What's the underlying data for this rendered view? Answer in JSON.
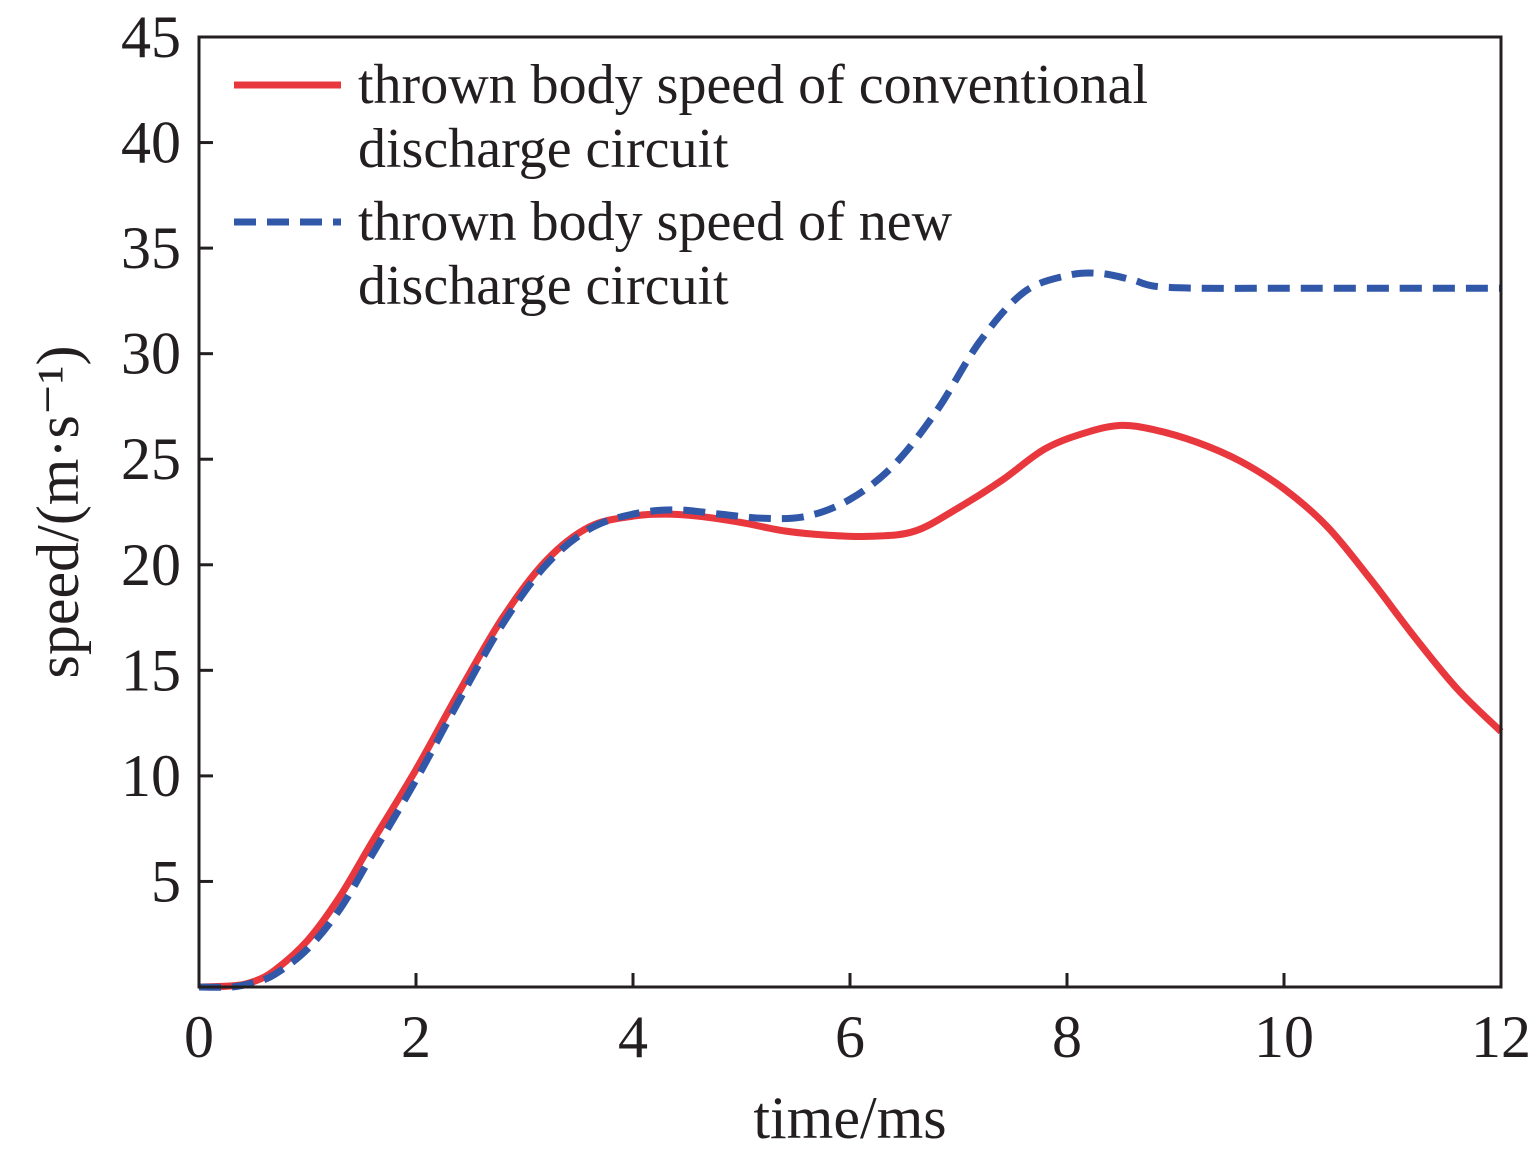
{
  "chart_data": {
    "type": "line",
    "xlabel": "time/ms",
    "ylabel": "speed/(m·s⁻¹)",
    "xlim": [
      0,
      12
    ],
    "ylim": [
      0,
      45
    ],
    "xticks": [
      0,
      2,
      4,
      6,
      8,
      10,
      12
    ],
    "yticks": [
      5,
      10,
      15,
      20,
      25,
      30,
      35,
      40,
      45
    ],
    "xtick_labels": [
      "0",
      "2",
      "4",
      "6",
      "8",
      "10",
      "12"
    ],
    "ytick_labels": [
      "5",
      "10",
      "15",
      "20",
      "25",
      "30",
      "35",
      "40",
      "45"
    ],
    "grid": false,
    "legend_position": "top-left",
    "series": [
      {
        "name": "thrown body speed of conventional discharge circuit",
        "legend_lines": [
          "thrown body speed of conventional",
          "discharge circuit"
        ],
        "color": "#e8383d",
        "style": "solid",
        "x": [
          0,
          0.3,
          0.5,
          0.7,
          1.0,
          1.3,
          1.6,
          2.0,
          2.4,
          2.8,
          3.2,
          3.6,
          4.0,
          4.3,
          4.6,
          5.0,
          5.4,
          5.8,
          6.2,
          6.6,
          7.0,
          7.4,
          7.8,
          8.2,
          8.5,
          8.8,
          9.2,
          9.6,
          10.0,
          10.4,
          10.8,
          11.2,
          11.6,
          12.0
        ],
        "y": [
          0,
          0.05,
          0.25,
          0.8,
          2.2,
          4.3,
          6.9,
          10.3,
          14.0,
          17.5,
          20.2,
          21.8,
          22.3,
          22.4,
          22.3,
          22.0,
          21.6,
          21.4,
          21.35,
          21.6,
          22.7,
          24.0,
          25.5,
          26.3,
          26.6,
          26.4,
          25.8,
          24.9,
          23.6,
          21.8,
          19.3,
          16.6,
          14.1,
          12.1
        ]
      },
      {
        "name": "thrown body speed of new discharge circuit",
        "legend_lines": [
          "thrown body speed of new",
          "discharge circuit"
        ],
        "color": "#3057a8",
        "style": "dashed",
        "x": [
          0,
          0.3,
          0.5,
          0.7,
          1.0,
          1.3,
          1.6,
          2.0,
          2.4,
          2.8,
          3.2,
          3.6,
          4.0,
          4.4,
          4.8,
          5.2,
          5.6,
          6.0,
          6.4,
          6.8,
          7.2,
          7.6,
          8.0,
          8.3,
          8.6,
          8.8,
          9.2,
          10.0,
          11.0,
          12.0
        ],
        "y": [
          0,
          0.0,
          0.2,
          0.6,
          1.8,
          3.7,
          6.3,
          9.8,
          13.6,
          17.2,
          20.0,
          21.7,
          22.4,
          22.6,
          22.4,
          22.2,
          22.3,
          23.1,
          24.7,
          27.3,
          30.6,
          32.9,
          33.7,
          33.8,
          33.5,
          33.2,
          33.1,
          33.1,
          33.1,
          33.1
        ]
      }
    ]
  }
}
